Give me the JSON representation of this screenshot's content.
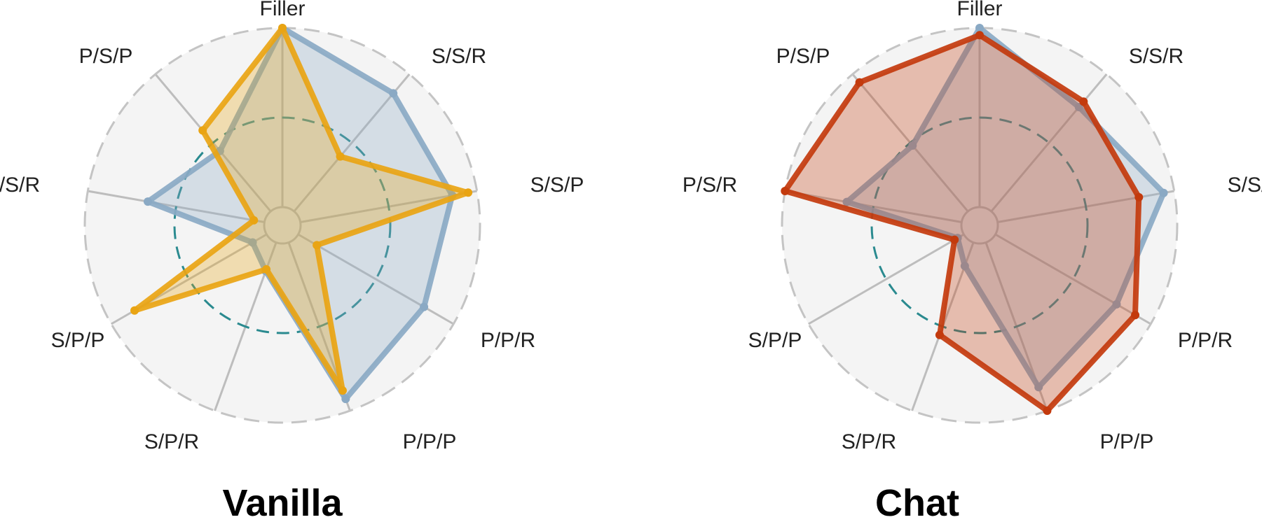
{
  "chart_data": [
    {
      "type": "radar",
      "title": "Vanilla",
      "axes": [
        "Filler",
        "S/S/R",
        "S/S/P",
        "P/P/R",
        "P/P/P",
        "S/P/R",
        "S/P/P",
        "P/S/R",
        "P/S/P"
      ],
      "rlim": [
        0,
        1
      ],
      "reference_rings": [
        0.5,
        1.0
      ],
      "grid": true,
      "series": [
        {
          "color": "#8AA9C4",
          "values": [
            1.0,
            0.86,
            0.86,
            0.81,
            0.93,
            0.17,
            0.09,
            0.66,
            0.44
          ]
        },
        {
          "color": "#E9A413",
          "values": [
            1.0,
            0.4,
            0.95,
            0.12,
            0.88,
            0.16,
            0.85,
            0.06,
            0.59
          ]
        }
      ]
    },
    {
      "type": "radar",
      "title": "Chat",
      "axes": [
        "Filler",
        "S/S/R",
        "S/S/P",
        "P/P/R",
        "P/P/P",
        "S/P/R",
        "S/P/P",
        "P/S/R",
        "P/S/P"
      ],
      "rlim": [
        0,
        1
      ],
      "reference_rings": [
        0.5,
        1.0
      ],
      "grid": true,
      "series": [
        {
          "color": "#8AA9C4",
          "values": [
            1.0,
            0.76,
            0.94,
            0.78,
            0.86,
            0.14,
            0.04,
            0.65,
            0.48
          ]
        },
        {
          "color": "#C33A0D",
          "values": [
            0.96,
            0.8,
            0.8,
            0.9,
            1.0,
            0.55,
            0.06,
            1.0,
            0.94
          ]
        }
      ]
    }
  ]
}
